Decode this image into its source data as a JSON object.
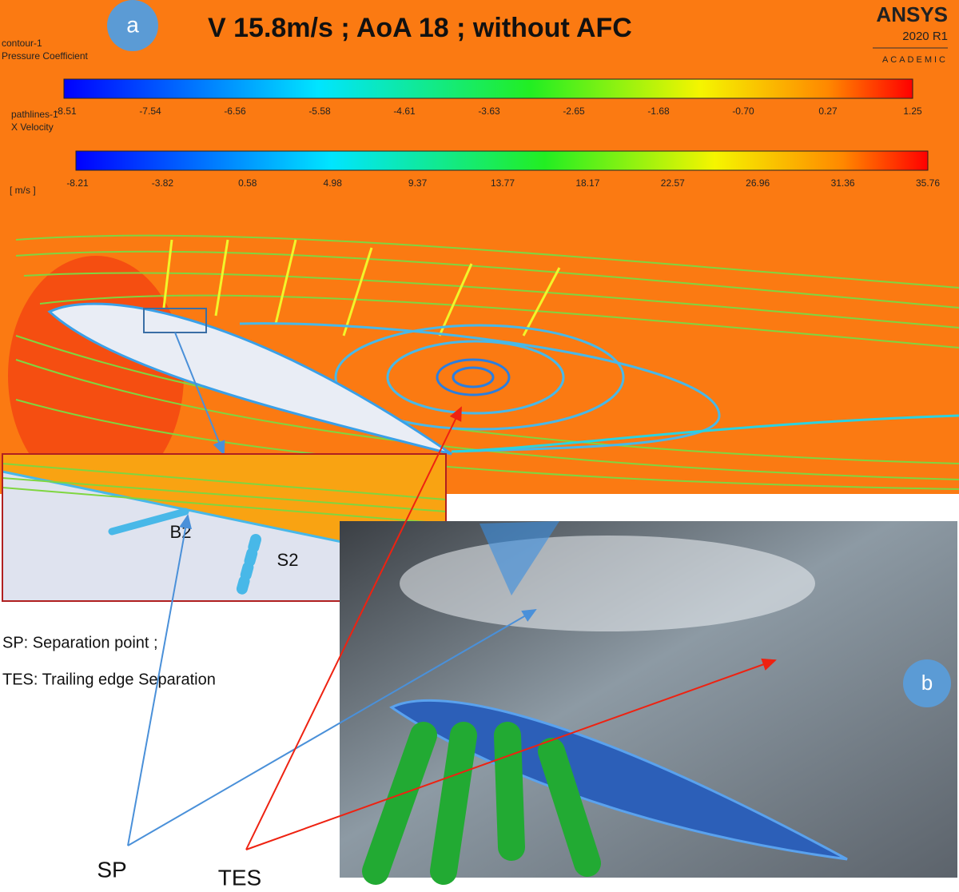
{
  "panel_a": {
    "badge": "a",
    "title": "V 15.8m/s ; AoA 18 ;  without AFC",
    "logo": {
      "brand": "ANSYS",
      "version": "2020 R1",
      "edition": "ACADEMIC"
    },
    "contour": {
      "name": "contour-1",
      "variable": "Pressure Coefficient",
      "ticks": [
        "-8.51",
        "-7.54",
        "-6.56",
        "-5.58",
        "-4.61",
        "-3.63",
        "-2.65",
        "-1.68",
        "-0.70",
        "0.27",
        "1.25"
      ]
    },
    "pathlines": {
      "name": "pathlines-1",
      "variable": "X Velocity",
      "unit": "[ m/s ]",
      "ticks": [
        "-8.21",
        "-3.82",
        "0.58",
        "4.98",
        "9.37",
        "13.77",
        "18.17",
        "22.57",
        "26.96",
        "31.36",
        "35.76"
      ]
    },
    "inset": {
      "labels": [
        "B2",
        "S2"
      ]
    }
  },
  "legend": [
    "SP: Separation point ;",
    "TES: Trailing edge Separation"
  ],
  "panel_b": {
    "badge": "b"
  },
  "callouts": {
    "sp": "SP",
    "tes": "TES"
  }
}
